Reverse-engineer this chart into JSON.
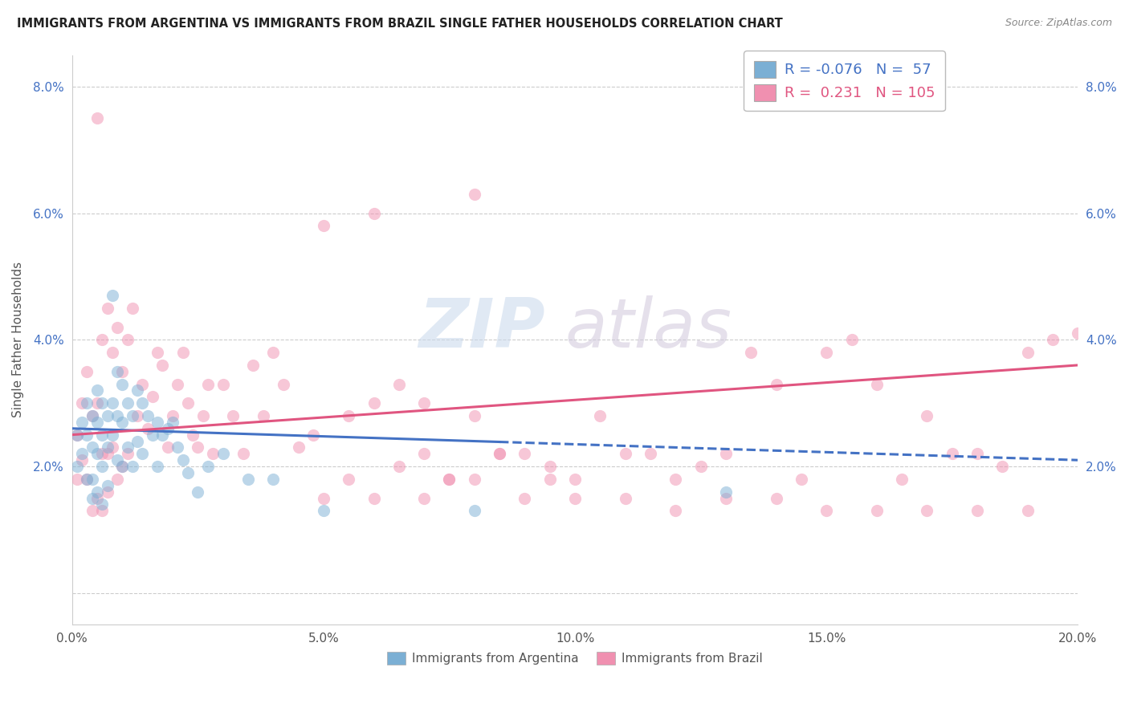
{
  "title": "IMMIGRANTS FROM ARGENTINA VS IMMIGRANTS FROM BRAZIL SINGLE FATHER HOUSEHOLDS CORRELATION CHART",
  "source": "Source: ZipAtlas.com",
  "ylabel": "Single Father Households",
  "xlim": [
    0.0,
    0.2
  ],
  "ylim": [
    -0.005,
    0.085
  ],
  "xticks": [
    0.0,
    0.05,
    0.1,
    0.15,
    0.2
  ],
  "xtick_labels": [
    "0.0%",
    "5.0%",
    "10.0%",
    "15.0%",
    "20.0%"
  ],
  "yticks": [
    0.0,
    0.02,
    0.04,
    0.06,
    0.08
  ],
  "ytick_labels": [
    "",
    "2.0%",
    "4.0%",
    "6.0%",
    "8.0%"
  ],
  "legend_r_argentina": "-0.076",
  "legend_n_argentina": "57",
  "legend_r_brazil": "0.231",
  "legend_n_brazil": "105",
  "color_argentina": "#7bafd4",
  "color_brazil": "#f090b0",
  "line_color_argentina": "#4472c4",
  "line_color_brazil": "#e05580",
  "watermark_zip": "ZIP",
  "watermark_atlas": "atlas",
  "argentina_scatter_x": [
    0.001,
    0.001,
    0.002,
    0.002,
    0.003,
    0.003,
    0.003,
    0.004,
    0.004,
    0.004,
    0.004,
    0.005,
    0.005,
    0.005,
    0.005,
    0.006,
    0.006,
    0.006,
    0.006,
    0.007,
    0.007,
    0.007,
    0.008,
    0.008,
    0.008,
    0.009,
    0.009,
    0.009,
    0.01,
    0.01,
    0.01,
    0.011,
    0.011,
    0.012,
    0.012,
    0.013,
    0.013,
    0.014,
    0.014,
    0.015,
    0.016,
    0.017,
    0.017,
    0.018,
    0.019,
    0.02,
    0.021,
    0.022,
    0.023,
    0.025,
    0.027,
    0.03,
    0.035,
    0.04,
    0.05,
    0.08,
    0.13
  ],
  "argentina_scatter_y": [
    0.025,
    0.02,
    0.027,
    0.022,
    0.03,
    0.025,
    0.018,
    0.028,
    0.023,
    0.018,
    0.015,
    0.032,
    0.027,
    0.022,
    0.016,
    0.03,
    0.025,
    0.02,
    0.014,
    0.028,
    0.023,
    0.017,
    0.047,
    0.03,
    0.025,
    0.035,
    0.028,
    0.021,
    0.033,
    0.027,
    0.02,
    0.03,
    0.023,
    0.028,
    0.02,
    0.032,
    0.024,
    0.03,
    0.022,
    0.028,
    0.025,
    0.027,
    0.02,
    0.025,
    0.026,
    0.027,
    0.023,
    0.021,
    0.019,
    0.016,
    0.02,
    0.022,
    0.018,
    0.018,
    0.013,
    0.013,
    0.016
  ],
  "brazil_scatter_x": [
    0.001,
    0.001,
    0.002,
    0.002,
    0.003,
    0.003,
    0.004,
    0.004,
    0.005,
    0.005,
    0.005,
    0.006,
    0.006,
    0.006,
    0.007,
    0.007,
    0.007,
    0.008,
    0.008,
    0.009,
    0.009,
    0.01,
    0.01,
    0.011,
    0.011,
    0.012,
    0.013,
    0.014,
    0.015,
    0.016,
    0.017,
    0.018,
    0.019,
    0.02,
    0.021,
    0.022,
    0.023,
    0.024,
    0.025,
    0.026,
    0.027,
    0.028,
    0.03,
    0.032,
    0.034,
    0.036,
    0.038,
    0.04,
    0.042,
    0.045,
    0.048,
    0.05,
    0.055,
    0.06,
    0.065,
    0.07,
    0.075,
    0.08,
    0.085,
    0.09,
    0.095,
    0.1,
    0.11,
    0.12,
    0.13,
    0.14,
    0.15,
    0.16,
    0.17,
    0.18,
    0.19,
    0.055,
    0.065,
    0.075,
    0.085,
    0.095,
    0.105,
    0.115,
    0.125,
    0.135,
    0.145,
    0.155,
    0.165,
    0.175,
    0.185,
    0.195,
    0.05,
    0.06,
    0.07,
    0.08,
    0.09,
    0.1,
    0.11,
    0.12,
    0.13,
    0.14,
    0.15,
    0.16,
    0.17,
    0.18,
    0.19,
    0.2,
    0.06,
    0.07,
    0.08
  ],
  "brazil_scatter_y": [
    0.025,
    0.018,
    0.03,
    0.021,
    0.035,
    0.018,
    0.028,
    0.013,
    0.075,
    0.03,
    0.015,
    0.04,
    0.022,
    0.013,
    0.045,
    0.022,
    0.016,
    0.038,
    0.023,
    0.042,
    0.018,
    0.035,
    0.02,
    0.04,
    0.022,
    0.045,
    0.028,
    0.033,
    0.026,
    0.031,
    0.038,
    0.036,
    0.023,
    0.028,
    0.033,
    0.038,
    0.03,
    0.025,
    0.023,
    0.028,
    0.033,
    0.022,
    0.033,
    0.028,
    0.022,
    0.036,
    0.028,
    0.038,
    0.033,
    0.023,
    0.025,
    0.058,
    0.028,
    0.06,
    0.033,
    0.022,
    0.018,
    0.028,
    0.022,
    0.022,
    0.018,
    0.018,
    0.022,
    0.018,
    0.022,
    0.033,
    0.038,
    0.033,
    0.028,
    0.022,
    0.038,
    0.018,
    0.02,
    0.018,
    0.022,
    0.02,
    0.028,
    0.022,
    0.02,
    0.038,
    0.018,
    0.04,
    0.018,
    0.022,
    0.02,
    0.04,
    0.015,
    0.015,
    0.015,
    0.018,
    0.015,
    0.015,
    0.015,
    0.013,
    0.015,
    0.015,
    0.013,
    0.013,
    0.013,
    0.013,
    0.013,
    0.041,
    0.03,
    0.03,
    0.063
  ]
}
